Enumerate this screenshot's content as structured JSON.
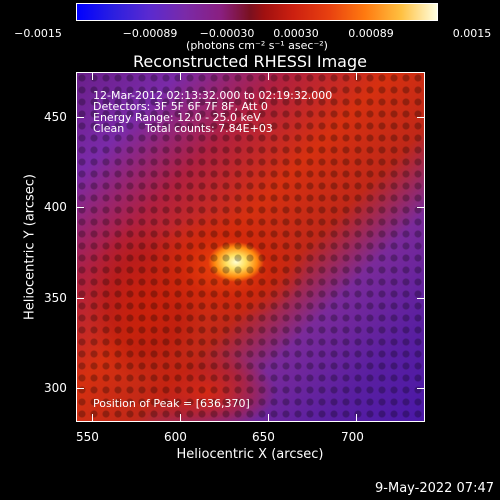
{
  "colorbar": {
    "tick_labels": [
      "−0.0015",
      "−0.00089",
      "−0.00030",
      "0.00030",
      "0.00089",
      "0.0015"
    ],
    "units_label": "(photons cm⁻² s⁻¹ asec⁻²)"
  },
  "title": "Reconstructed RHESSI Image",
  "overlay": {
    "time_range": "12-Mar-2012 02:13:32.000 to 02:19:32.000",
    "detectors": "Detectors: 3F 5F 6F 7F 8F, Att 0",
    "energy_range": "Energy Range: 12.0 - 25.0 keV",
    "clean_label": "Clean",
    "total_counts": "Total counts: 7.84E+03",
    "peak_position": "Position of Peak = [636,370]"
  },
  "axes": {
    "xlabel": "Heliocentric X (arcsec)",
    "ylabel": "Heliocentric Y (arcsec)",
    "xticks": [
      "550",
      "600",
      "650",
      "700"
    ],
    "yticks": [
      "450",
      "400",
      "350",
      "300"
    ]
  },
  "footer": {
    "date_stamp": "9-May-2022 07:47"
  }
}
